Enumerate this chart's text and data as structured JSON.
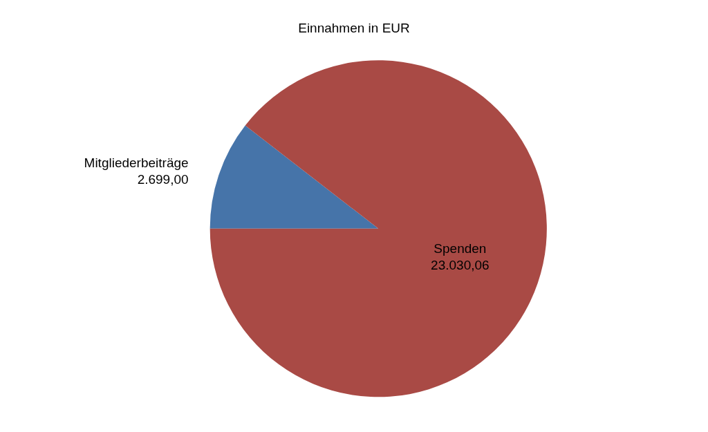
{
  "chart_data": {
    "type": "pie",
    "title": "Einnahmen in EUR",
    "categories": [
      "Mitgliederbeiträge",
      "Spenden"
    ],
    "values": [
      2699.0,
      23030.06
    ],
    "value_labels": [
      "2.699,00",
      "23.030,06"
    ],
    "colors": [
      "#4674a9",
      "#a94a45"
    ]
  }
}
